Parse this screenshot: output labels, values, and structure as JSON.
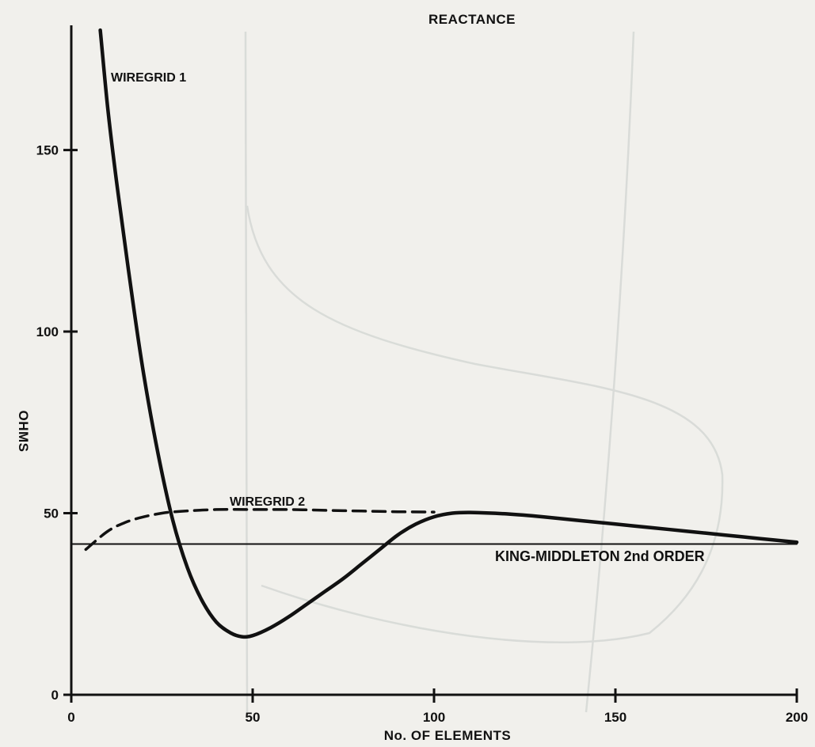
{
  "chart_data": {
    "type": "line",
    "title": "REACTANCE",
    "xlabel": "No. OF ELEMENTS",
    "ylabel": "OHMS",
    "xlim": [
      0,
      200
    ],
    "ylim": [
      0,
      190
    ],
    "xticks": [
      0,
      50,
      100,
      150,
      200
    ],
    "yticks": [
      0,
      50,
      100,
      150
    ],
    "grid": false,
    "series": [
      {
        "name": "WIREGRID 1",
        "style": "solid",
        "x": [
          8,
          10,
          12,
          14,
          17,
          20,
          24,
          28,
          32,
          36,
          40,
          44,
          47,
          50,
          55,
          60,
          65,
          70,
          75,
          80,
          85,
          90,
          95,
          100,
          105,
          110,
          120,
          130,
          140,
          150,
          160,
          170,
          180,
          190,
          200
        ],
        "y": [
          183,
          162,
          145,
          130,
          108,
          88,
          66,
          48,
          35,
          26,
          20,
          17,
          16,
          16.3,
          18.5,
          21.5,
          25,
          28.5,
          32,
          36,
          40,
          44,
          47,
          49,
          50,
          50.2,
          49.8,
          49,
          48,
          47,
          46,
          45,
          44,
          43,
          42
        ]
      },
      {
        "name": "WIREGRID 2",
        "style": "dashed",
        "x": [
          4,
          10,
          15,
          20,
          25,
          30,
          40,
          50,
          60,
          70,
          80,
          90,
          100
        ],
        "y": [
          40,
          45,
          47.5,
          49,
          50,
          50.5,
          51,
          51,
          51,
          50.8,
          50.6,
          50.4,
          50.3
        ]
      },
      {
        "name": "KING-MIDDLETON 2nd ORDER",
        "style": "solid-thin",
        "x": [
          0,
          200
        ],
        "y": [
          41.5,
          41.5
        ]
      }
    ]
  },
  "colors": {
    "ink": "#111111",
    "paper": "#f1f0ec",
    "bleed": "#cfd3d0"
  }
}
